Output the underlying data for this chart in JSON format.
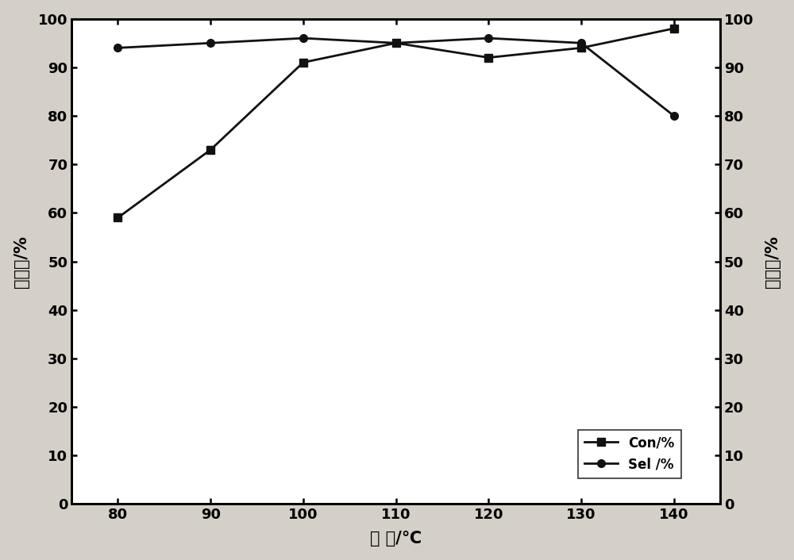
{
  "x": [
    80,
    90,
    100,
    110,
    120,
    130,
    140
  ],
  "con_values": [
    59,
    73,
    91,
    95,
    92,
    94,
    98
  ],
  "sel_values": [
    94,
    95,
    96,
    95,
    96,
    95,
    80
  ],
  "xlabel": "温 度/℃",
  "ylabel_left": "转化率/%",
  "ylabel_right": "选择性/%",
  "legend_con": "Con/%",
  "legend_sel": "Sel /%",
  "xlim": [
    75,
    145
  ],
  "ylim_left": [
    0,
    100
  ],
  "ylim_right": [
    0,
    100
  ],
  "xticks": [
    80,
    90,
    100,
    110,
    120,
    130,
    140
  ],
  "yticks": [
    0,
    10,
    20,
    30,
    40,
    50,
    60,
    70,
    80,
    90,
    100
  ],
  "line_color": "#111111",
  "fig_bg_color": "#d4d0c8",
  "plot_bg_color": "#ffffff",
  "tick_fontsize": 13,
  "label_fontsize": 15,
  "legend_fontsize": 12
}
